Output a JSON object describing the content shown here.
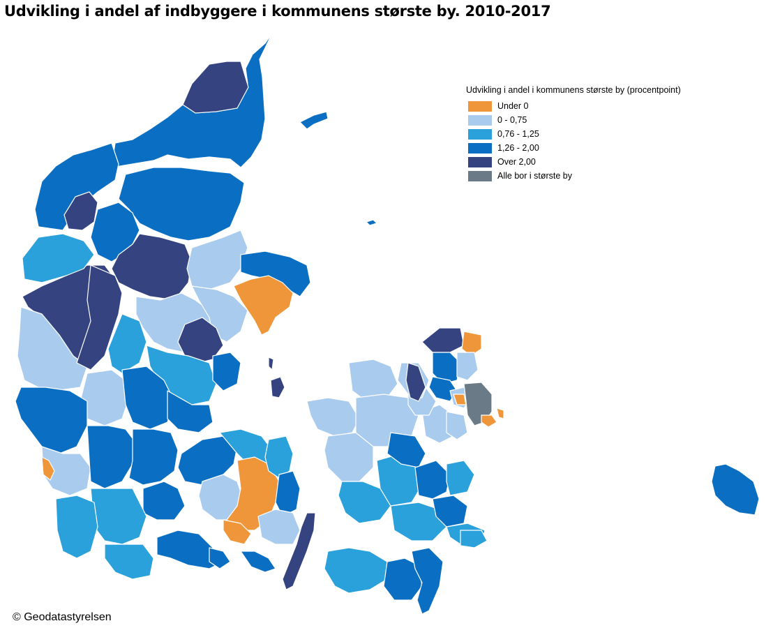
{
  "title": "Udvikling i andel af indbyggere i kommunens største by. 2010-2017",
  "legend": {
    "title": "Udvikling i andel i kommunens største by (procentpoint)",
    "items": [
      {
        "label": "Under 0",
        "color": "#f0963a"
      },
      {
        "label": "0 - 0,75",
        "color": "#a9cbee"
      },
      {
        "label": "0,76 - 1,25",
        "color": "#2aa1db"
      },
      {
        "label": "1,26 - 2,00",
        "color": "#0a6fc2"
      },
      {
        "label": "Over 2,00",
        "color": "#354480"
      },
      {
        "label": "Alle bor i største by",
        "color": "#6a7a86"
      }
    ]
  },
  "credit": "© Geodatastyrelsen"
}
